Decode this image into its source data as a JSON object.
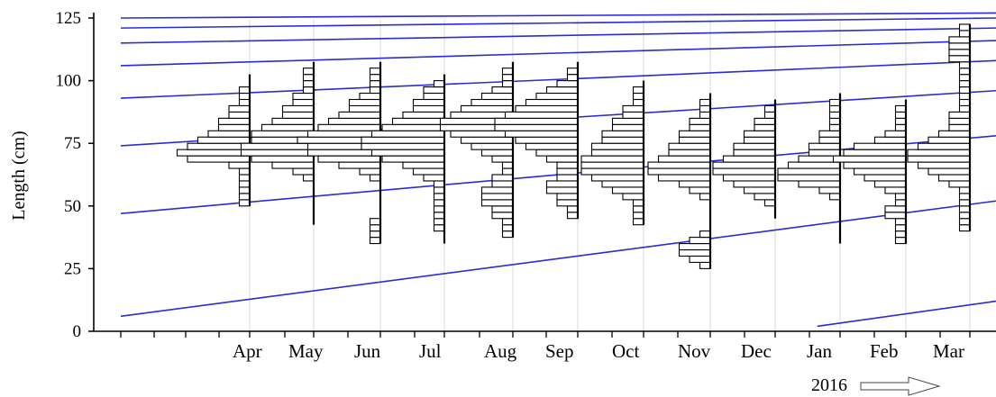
{
  "chart_data": {
    "type": "histogram-series",
    "ylabel": "Length (cm)",
    "ylim": [
      0,
      125
    ],
    "yticks": [
      "0",
      "25",
      "50",
      "75",
      "100",
      "125"
    ],
    "categories": [
      "Apr",
      "May",
      "Jun",
      "Jul",
      "Aug",
      "Sep",
      "Oct",
      "Nov",
      "Dec",
      "Jan",
      "Feb",
      "Mar"
    ],
    "year_label": "2016",
    "year_arrow": "arrow-right-icon",
    "bin_width": 2.5,
    "samples": [
      {
        "month": "Apr",
        "bins": [
          [
            50,
            1
          ],
          [
            52.5,
            1
          ],
          [
            55,
            1
          ],
          [
            57.5,
            1
          ],
          [
            60,
            1
          ],
          [
            62.5,
            1
          ],
          [
            65,
            2
          ],
          [
            67.5,
            6
          ],
          [
            70,
            7
          ],
          [
            72.5,
            6
          ],
          [
            75,
            5
          ],
          [
            77.5,
            4
          ],
          [
            80,
            3
          ],
          [
            82.5,
            3
          ],
          [
            85,
            2
          ],
          [
            87.5,
            2
          ],
          [
            90,
            1
          ],
          [
            92.5,
            1
          ],
          [
            95,
            1
          ],
          [
            97.5,
            0
          ],
          [
            100,
            0
          ]
        ]
      },
      {
        "month": "May",
        "bins": [
          [
            42.5,
            0
          ],
          [
            45,
            0
          ],
          [
            50,
            0
          ],
          [
            55,
            0
          ],
          [
            60,
            1
          ],
          [
            62.5,
            2
          ],
          [
            65,
            4
          ],
          [
            67.5,
            6
          ],
          [
            70,
            7
          ],
          [
            72.5,
            7
          ],
          [
            75,
            6
          ],
          [
            77.5,
            6
          ],
          [
            80,
            5
          ],
          [
            82.5,
            4
          ],
          [
            85,
            3
          ],
          [
            87.5,
            3
          ],
          [
            90,
            2
          ],
          [
            92.5,
            2
          ],
          [
            95,
            1
          ],
          [
            97.5,
            1
          ],
          [
            100,
            1
          ],
          [
            102.5,
            1
          ],
          [
            105,
            0
          ]
        ]
      },
      {
        "month": "Jun",
        "bins": [
          [
            35,
            1
          ],
          [
            37.5,
            1
          ],
          [
            40,
            1
          ],
          [
            42.5,
            1
          ],
          [
            45,
            0
          ],
          [
            50,
            0
          ],
          [
            55,
            0
          ],
          [
            60,
            1
          ],
          [
            62.5,
            2
          ],
          [
            65,
            4
          ],
          [
            67.5,
            6
          ],
          [
            70,
            7
          ],
          [
            72.5,
            7
          ],
          [
            75,
            8
          ],
          [
            77.5,
            7
          ],
          [
            80,
            6
          ],
          [
            82.5,
            5
          ],
          [
            85,
            4
          ],
          [
            87.5,
            3
          ],
          [
            90,
            3
          ],
          [
            92.5,
            2
          ],
          [
            95,
            1
          ],
          [
            97.5,
            1
          ],
          [
            100,
            1
          ],
          [
            102.5,
            1
          ],
          [
            105,
            0
          ]
        ]
      },
      {
        "month": "Jul",
        "bins": [
          [
            35,
            0
          ],
          [
            37.5,
            0
          ],
          [
            40,
            1
          ],
          [
            42.5,
            1
          ],
          [
            45,
            1
          ],
          [
            47.5,
            1
          ],
          [
            50,
            1
          ],
          [
            52.5,
            1
          ],
          [
            55,
            1
          ],
          [
            57.5,
            1
          ],
          [
            60,
            2
          ],
          [
            62.5,
            3
          ],
          [
            65,
            4
          ],
          [
            67.5,
            6
          ],
          [
            70,
            7
          ],
          [
            72.5,
            8
          ],
          [
            75,
            8
          ],
          [
            77.5,
            7
          ],
          [
            80,
            6
          ],
          [
            82.5,
            5
          ],
          [
            85,
            4
          ],
          [
            87.5,
            3
          ],
          [
            90,
            3
          ],
          [
            92.5,
            2
          ],
          [
            95,
            2
          ],
          [
            97.5,
            1
          ],
          [
            100,
            0
          ]
        ]
      },
      {
        "month": "Aug",
        "bins": [
          [
            37.5,
            1
          ],
          [
            40,
            1
          ],
          [
            42.5,
            1
          ],
          [
            45,
            2
          ],
          [
            47.5,
            2
          ],
          [
            50,
            3
          ],
          [
            52.5,
            3
          ],
          [
            55,
            3
          ],
          [
            57.5,
            2
          ],
          [
            60,
            2
          ],
          [
            62.5,
            1
          ],
          [
            65,
            1
          ],
          [
            67.5,
            2
          ],
          [
            70,
            3
          ],
          [
            72.5,
            4
          ],
          [
            75,
            5
          ],
          [
            77.5,
            6
          ],
          [
            80,
            7
          ],
          [
            82.5,
            7
          ],
          [
            85,
            6
          ],
          [
            87.5,
            5
          ],
          [
            90,
            4
          ],
          [
            92.5,
            3
          ],
          [
            95,
            2
          ],
          [
            97.5,
            1
          ],
          [
            100,
            1
          ],
          [
            102.5,
            1
          ],
          [
            105,
            0
          ]
        ]
      },
      {
        "month": "Sep",
        "bins": [
          [
            45,
            1
          ],
          [
            47.5,
            1
          ],
          [
            50,
            2
          ],
          [
            52.5,
            2
          ],
          [
            55,
            3
          ],
          [
            57.5,
            3
          ],
          [
            60,
            2
          ],
          [
            62.5,
            2
          ],
          [
            65,
            2
          ],
          [
            67.5,
            3
          ],
          [
            70,
            4
          ],
          [
            72.5,
            5
          ],
          [
            75,
            6
          ],
          [
            77.5,
            7
          ],
          [
            80,
            8
          ],
          [
            82.5,
            8
          ],
          [
            85,
            7
          ],
          [
            87.5,
            6
          ],
          [
            90,
            5
          ],
          [
            92.5,
            4
          ],
          [
            95,
            3
          ],
          [
            97.5,
            2
          ],
          [
            100,
            1
          ],
          [
            102.5,
            1
          ],
          [
            105,
            0
          ]
        ]
      },
      {
        "month": "Oct",
        "bins": [
          [
            42.5,
            1
          ],
          [
            45,
            1
          ],
          [
            47.5,
            1
          ],
          [
            50,
            1
          ],
          [
            52.5,
            2
          ],
          [
            55,
            3
          ],
          [
            57.5,
            4
          ],
          [
            60,
            5
          ],
          [
            62.5,
            6
          ],
          [
            65,
            6
          ],
          [
            67.5,
            6
          ],
          [
            70,
            5
          ],
          [
            72.5,
            5
          ],
          [
            75,
            4
          ],
          [
            77.5,
            4
          ],
          [
            80,
            3
          ],
          [
            82.5,
            3
          ],
          [
            85,
            2
          ],
          [
            87.5,
            2
          ],
          [
            90,
            1
          ],
          [
            92.5,
            1
          ],
          [
            95,
            1
          ],
          [
            97.5,
            0
          ]
        ]
      },
      {
        "month": "Nov",
        "bins": [
          [
            25,
            1
          ],
          [
            27.5,
            2
          ],
          [
            30,
            3
          ],
          [
            32.5,
            3
          ],
          [
            35,
            2
          ],
          [
            37.5,
            1
          ],
          [
            40,
            0
          ],
          [
            42.5,
            0
          ],
          [
            45,
            0
          ],
          [
            47.5,
            0
          ],
          [
            50,
            0
          ],
          [
            52.5,
            1
          ],
          [
            55,
            2
          ],
          [
            57.5,
            3
          ],
          [
            60,
            5
          ],
          [
            62.5,
            6
          ],
          [
            65,
            6
          ],
          [
            67.5,
            5
          ],
          [
            70,
            4
          ],
          [
            72.5,
            4
          ],
          [
            75,
            3
          ],
          [
            77.5,
            3
          ],
          [
            80,
            2
          ],
          [
            82.5,
            2
          ],
          [
            85,
            1
          ],
          [
            87.5,
            1
          ],
          [
            90,
            1
          ],
          [
            92.5,
            0
          ]
        ]
      },
      {
        "month": "Dec",
        "bins": [
          [
            45,
            0
          ],
          [
            50,
            1
          ],
          [
            52.5,
            2
          ],
          [
            55,
            3
          ],
          [
            57.5,
            4
          ],
          [
            60,
            5
          ],
          [
            62.5,
            6
          ],
          [
            65,
            6
          ],
          [
            67.5,
            5
          ],
          [
            70,
            4
          ],
          [
            72.5,
            4
          ],
          [
            75,
            3
          ],
          [
            77.5,
            3
          ],
          [
            80,
            2
          ],
          [
            82.5,
            2
          ],
          [
            85,
            1
          ],
          [
            87.5,
            1
          ],
          [
            90,
            0
          ]
        ]
      },
      {
        "month": "Jan",
        "bins": [
          [
            35,
            0
          ],
          [
            40,
            0
          ],
          [
            45,
            0
          ],
          [
            50,
            0
          ],
          [
            52.5,
            1
          ],
          [
            55,
            2
          ],
          [
            57.5,
            4
          ],
          [
            60,
            6
          ],
          [
            62.5,
            6
          ],
          [
            65,
            5
          ],
          [
            67.5,
            4
          ],
          [
            70,
            3
          ],
          [
            72.5,
            3
          ],
          [
            75,
            2
          ],
          [
            77.5,
            2
          ],
          [
            80,
            1
          ],
          [
            82.5,
            1
          ],
          [
            85,
            1
          ],
          [
            87.5,
            1
          ],
          [
            90,
            1
          ],
          [
            92.5,
            0
          ]
        ]
      },
      {
        "month": "Feb",
        "bins": [
          [
            35,
            1
          ],
          [
            37.5,
            1
          ],
          [
            40,
            1
          ],
          [
            42.5,
            1
          ],
          [
            45,
            2
          ],
          [
            47.5,
            2
          ],
          [
            50,
            1
          ],
          [
            52.5,
            1
          ],
          [
            55,
            2
          ],
          [
            57.5,
            3
          ],
          [
            60,
            4
          ],
          [
            62.5,
            5
          ],
          [
            65,
            6
          ],
          [
            67.5,
            7
          ],
          [
            70,
            6
          ],
          [
            72.5,
            5
          ],
          [
            75,
            3
          ],
          [
            77.5,
            2
          ],
          [
            80,
            1
          ],
          [
            82.5,
            1
          ],
          [
            85,
            1
          ],
          [
            87.5,
            1
          ],
          [
            90,
            0
          ]
        ]
      },
      {
        "month": "Mar",
        "bins": [
          [
            40,
            1
          ],
          [
            42.5,
            1
          ],
          [
            45,
            1
          ],
          [
            47.5,
            1
          ],
          [
            50,
            1
          ],
          [
            52.5,
            1
          ],
          [
            55,
            1
          ],
          [
            57.5,
            2
          ],
          [
            60,
            3
          ],
          [
            62.5,
            4
          ],
          [
            65,
            5
          ],
          [
            67.5,
            6
          ],
          [
            70,
            6
          ],
          [
            72.5,
            5
          ],
          [
            75,
            4
          ],
          [
            77.5,
            3
          ],
          [
            80,
            2
          ],
          [
            82.5,
            2
          ],
          [
            85,
            2
          ],
          [
            87.5,
            1
          ],
          [
            90,
            1
          ],
          [
            92.5,
            1
          ],
          [
            95,
            1
          ],
          [
            97.5,
            1
          ],
          [
            100,
            1
          ],
          [
            102.5,
            1
          ],
          [
            105,
            1
          ],
          [
            107.5,
            2
          ],
          [
            110,
            2
          ],
          [
            112.5,
            2
          ],
          [
            115,
            2
          ],
          [
            117.5,
            1
          ],
          [
            120,
            1
          ]
        ]
      }
    ],
    "growth_curves": [
      {
        "x0": 0.0,
        "y0": 6,
        "x1": 12.0,
        "y1": 52
      },
      {
        "x0": 0.0,
        "y0": 47,
        "x1": 12.0,
        "y1": 78
      },
      {
        "x0": 0.0,
        "y0": 74,
        "x1": 12.0,
        "y1": 96
      },
      {
        "x0": 0.0,
        "y0": 93,
        "x1": 12.0,
        "y1": 108
      },
      {
        "x0": 0.0,
        "y0": 106,
        "x1": 12.0,
        "y1": 116
      },
      {
        "x0": 0.0,
        "y0": 115,
        "x1": 12.0,
        "y1": 121
      },
      {
        "x0": 0.0,
        "y0": 121,
        "x1": 12.0,
        "y1": 125
      },
      {
        "x0": 0.0,
        "y0": 125,
        "x1": 12.0,
        "y1": 127
      },
      {
        "x0": 9.55,
        "y0": 2,
        "x1": 12.0,
        "y1": 12
      }
    ],
    "colors": {
      "curve": "#2b2bd6",
      "bar_stroke": "#000000",
      "grid": "#d9d9d9",
      "axis": "#000000"
    }
  }
}
